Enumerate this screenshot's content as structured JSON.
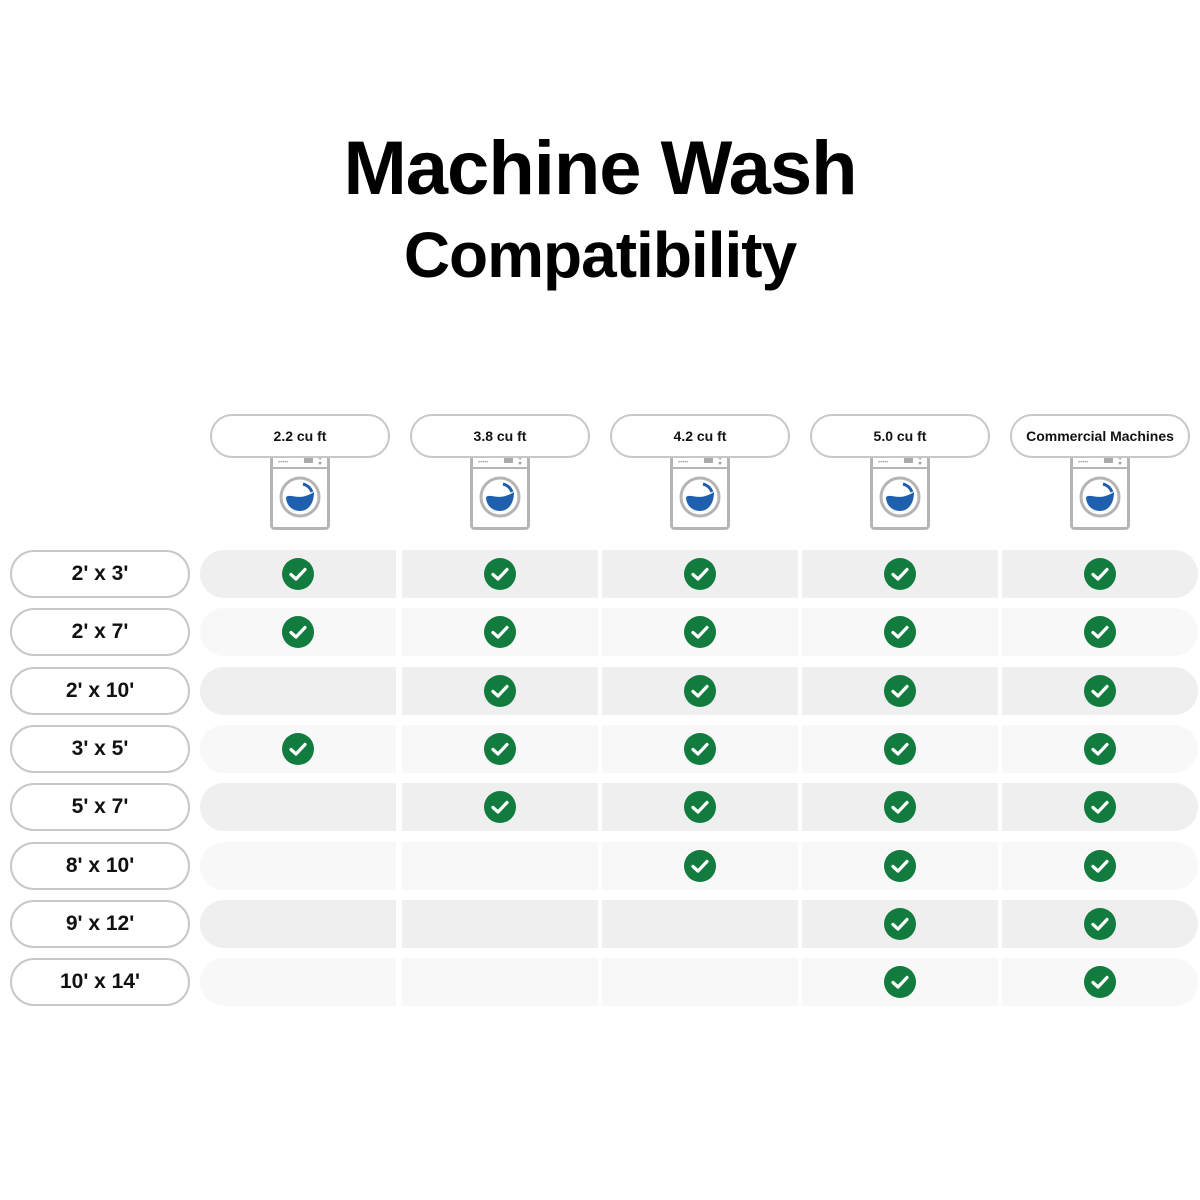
{
  "title": {
    "line1": "Machine Wash",
    "line2": "Compatibility"
  },
  "columns": [
    "2.2 cu ft",
    "3.8 cu ft",
    "4.2 cu ft",
    "5.0 cu ft",
    "Commercial Machines"
  ],
  "rows": [
    {
      "size": "2' x 3'",
      "compatible": [
        true,
        true,
        true,
        true,
        true
      ]
    },
    {
      "size": "2' x 7'",
      "compatible": [
        true,
        true,
        true,
        true,
        true
      ]
    },
    {
      "size": "2' x 10'",
      "compatible": [
        false,
        true,
        true,
        true,
        true
      ]
    },
    {
      "size": "3' x 5'",
      "compatible": [
        true,
        true,
        true,
        true,
        true
      ]
    },
    {
      "size": "5' x 7'",
      "compatible": [
        false,
        true,
        true,
        true,
        true
      ]
    },
    {
      "size": "8' x 10'",
      "compatible": [
        false,
        false,
        true,
        true,
        true
      ]
    },
    {
      "size": "9' x 12'",
      "compatible": [
        false,
        false,
        false,
        true,
        true
      ]
    },
    {
      "size": "10' x 14'",
      "compatible": [
        false,
        false,
        false,
        true,
        true
      ]
    }
  ],
  "colors": {
    "check": "#127c3e",
    "water": "#1e5fae",
    "row_dark": "#efefef",
    "row_light": "#f8f8f8",
    "outline": "#c8c8c8"
  },
  "icons": {
    "header": "washing-machine-icon",
    "cell": "check-circle-icon"
  }
}
